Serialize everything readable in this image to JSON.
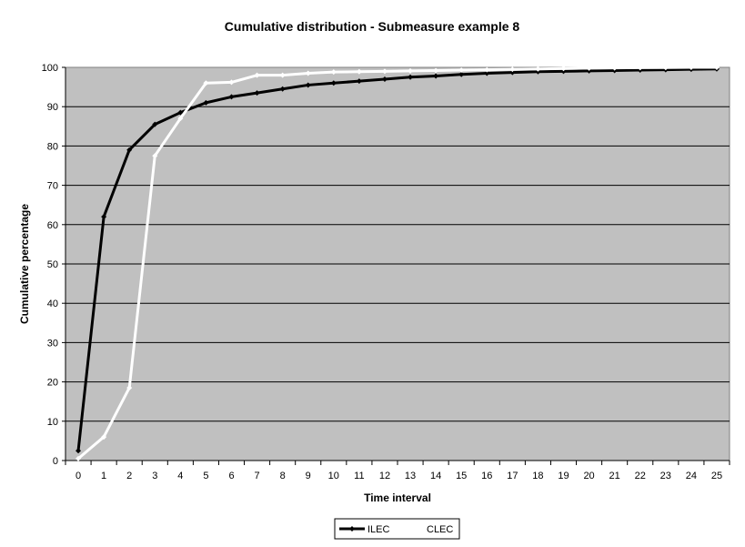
{
  "chart_data": {
    "type": "line",
    "title": "Cumulative distribution - Submeasure example 8",
    "xlabel": "Time interval",
    "ylabel": "Cumulative percentage",
    "x": [
      0,
      1,
      2,
      3,
      4,
      5,
      6,
      7,
      8,
      9,
      10,
      11,
      12,
      13,
      14,
      15,
      16,
      17,
      18,
      19,
      20,
      21,
      22,
      23,
      24,
      25
    ],
    "ylim": [
      0,
      100
    ],
    "yticks": [
      0,
      10,
      20,
      30,
      40,
      50,
      60,
      70,
      80,
      90,
      100
    ],
    "grid": true,
    "legend_position": "bottom",
    "plot_background": "#c0c0c0",
    "series": [
      {
        "name": "ILEC",
        "color": "#000000",
        "values": [
          2.5,
          62,
          79,
          85.5,
          88.5,
          91,
          92.5,
          93.5,
          94.5,
          95.5,
          96,
          96.5,
          97,
          97.5,
          97.8,
          98.2,
          98.5,
          98.7,
          98.9,
          99,
          99.1,
          99.2,
          99.3,
          99.4,
          99.5,
          99.6
        ]
      },
      {
        "name": "CLEC",
        "color": "#ffffff",
        "values": [
          0.5,
          6,
          18.5,
          77.5,
          87,
          96,
          96.2,
          98,
          98,
          98.5,
          98.8,
          98.9,
          99,
          99.1,
          99.2,
          99.3,
          99.4,
          99.5,
          99.6,
          99.7,
          99.8,
          99.85,
          99.9,
          99.95,
          100,
          100
        ]
      }
    ]
  }
}
